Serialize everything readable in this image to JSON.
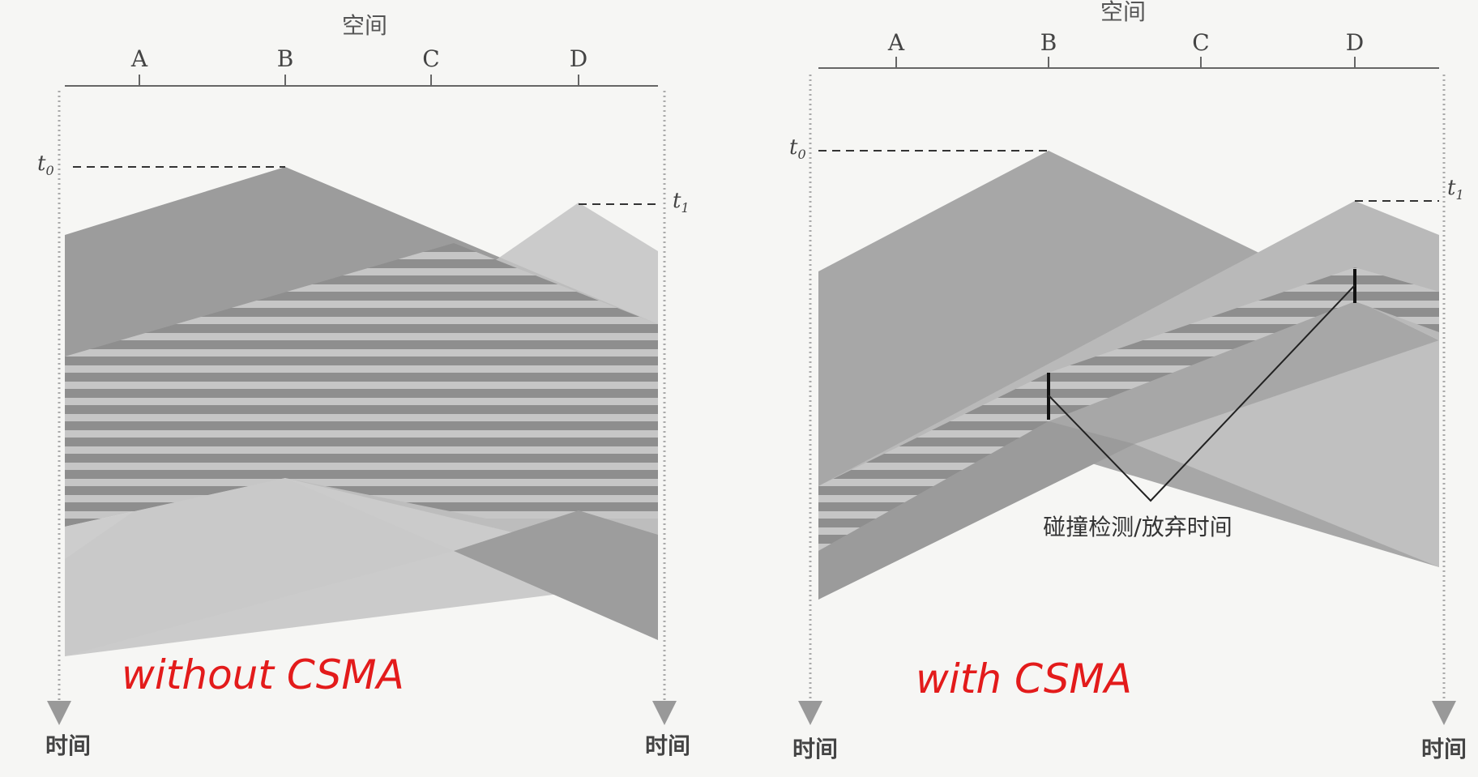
{
  "left_panel": {
    "space_label": "空间",
    "station_labels": [
      "A",
      "B",
      "C",
      "D"
    ],
    "t0_label": "t",
    "t0_sub": "0",
    "t1_label": "t",
    "t1_sub": "1",
    "time_label_left": "时间",
    "time_label_right": "时间",
    "handwritten_note": "without CSMA"
  },
  "right_panel": {
    "space_label": "空间",
    "station_labels": [
      "A",
      "B",
      "C",
      "D"
    ],
    "t0_label": "t",
    "t0_sub": "0",
    "t1_label": "t",
    "t1_sub": "1",
    "time_label_left": "时间",
    "time_label_right": "时间",
    "collision_label": "碰撞检测/放弃时间",
    "handwritten_note": "with CSMA"
  },
  "colors": {
    "background": "#f6f6f4",
    "dark_gray": "#9a9a9a",
    "mid_gray": "#b3b3b3",
    "light_gray": "#c8c8c8",
    "stripe": "#8c8c8c",
    "axis": "#666666",
    "handwriting": "#e31b1b"
  }
}
